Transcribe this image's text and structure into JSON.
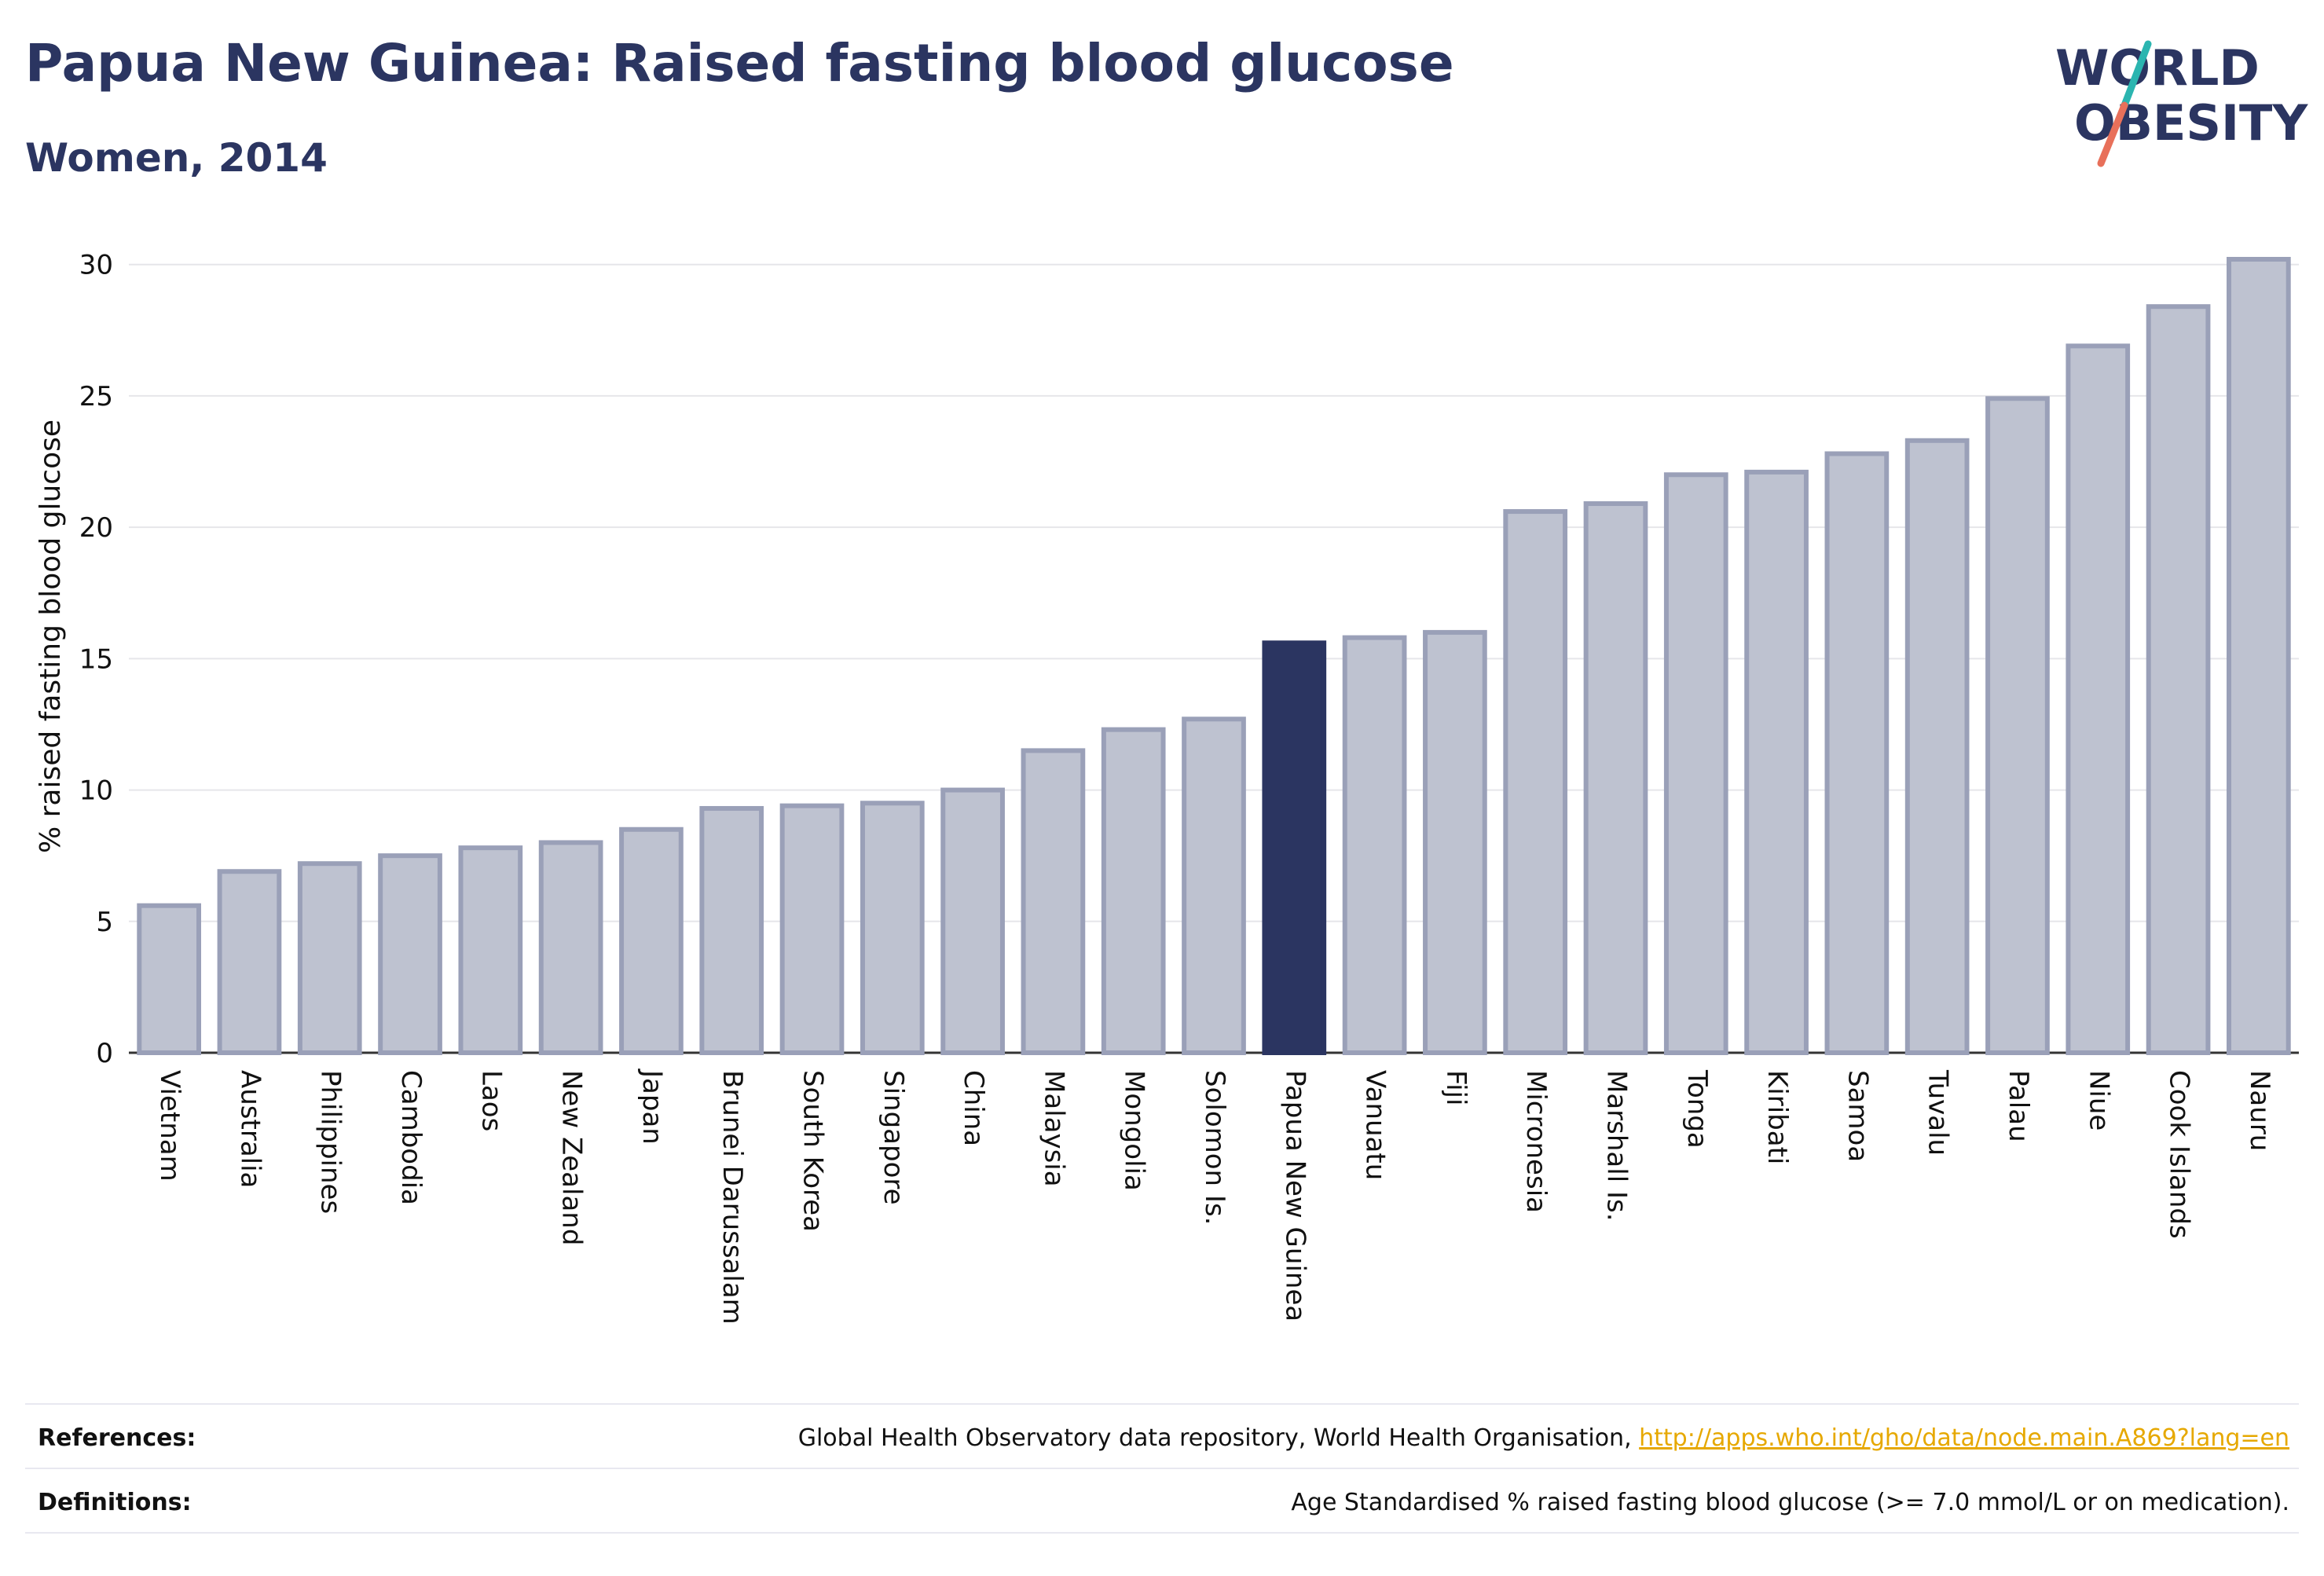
{
  "header": {
    "title": "Papua New Guinea: Raised fasting blood glucose",
    "subtitle": "Women, 2014"
  },
  "logo": {
    "line1": "WORLD",
    "line2": "OBESITY",
    "accent_colors": [
      "#2bb5b0",
      "#e8705a"
    ]
  },
  "colors": {
    "bar_default": "#bec2d0",
    "bar_border": "#9aa0b8",
    "bar_highlight": "#2b3561",
    "text": "#2b3561",
    "grid": "#e6e6ea",
    "link": "#e6a800"
  },
  "chart_data": {
    "type": "bar",
    "categories": [
      "Vietnam",
      "Australia",
      "Philippines",
      "Cambodia",
      "Laos",
      "New Zealand",
      "Japan",
      "Brunei Darussalam",
      "South Korea",
      "Singapore",
      "China",
      "Malaysia",
      "Mongolia",
      "Solomon Is.",
      "Papua New Guinea",
      "Vanuatu",
      "Fiji",
      "Micronesia",
      "Marshall Is.",
      "Tonga",
      "Kiribati",
      "Samoa",
      "Tuvalu",
      "Palau",
      "Niue",
      "Cook Islands",
      "Nauru"
    ],
    "values": [
      5.6,
      6.9,
      7.2,
      7.5,
      7.8,
      8.0,
      8.5,
      9.3,
      9.4,
      9.5,
      10.0,
      11.5,
      12.3,
      12.7,
      15.6,
      15.8,
      16.0,
      20.6,
      20.9,
      22.0,
      22.1,
      22.8,
      23.3,
      24.9,
      26.9,
      28.4,
      30.2
    ],
    "highlight": "Papua New Guinea",
    "xlabel": "",
    "ylabel": "% raised fasting blood glucose",
    "ylim": [
      0,
      30
    ],
    "yticks": [
      0,
      5,
      10,
      15,
      20,
      25,
      30
    ],
    "grid": true
  },
  "footer": {
    "references_label": "References:",
    "references_text": "Global Health Observatory data repository, World Health Organisation, ",
    "references_link": "http://apps.who.int/gho/data/node.main.A869?lang=en",
    "definitions_label": "Definitions:",
    "definitions_text": "Age Standardised % raised fasting blood glucose (>= 7.0 mmol/L or on medication)."
  }
}
